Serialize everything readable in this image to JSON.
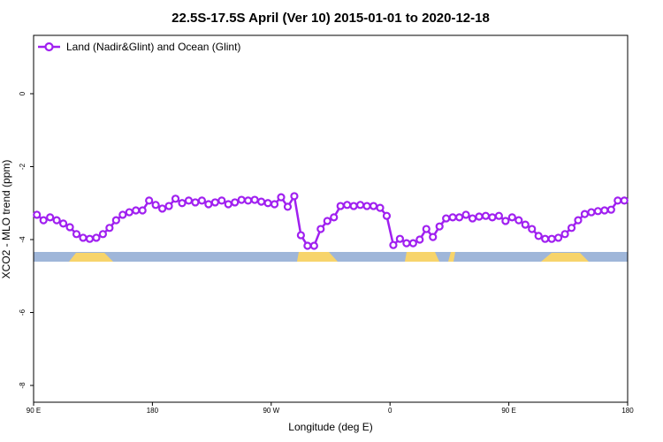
{
  "chart_data": {
    "type": "line",
    "title": "22.5S-17.5S April (Ver 10)   2015-01-01 to 2020-12-18",
    "x_label": "Longitude (deg E)",
    "y_label": "XCO2 - MLO trend (ppm)",
    "x": [
      92.5,
      97.5,
      102.5,
      107.5,
      112.5,
      117.5,
      122.5,
      127.5,
      132.5,
      137.5,
      142.5,
      147.5,
      152.5,
      157.5,
      162.5,
      167.5,
      172.5,
      177.5,
      182.5,
      187.5,
      192.5,
      197.5,
      202.5,
      207.5,
      212.5,
      217.5,
      222.5,
      227.5,
      232.5,
      237.5,
      242.5,
      247.5,
      252.5,
      257.5,
      262.5,
      267.5,
      272.5,
      277.5,
      282.5,
      287.5,
      292.5,
      297.5,
      302.5,
      307.5,
      312.5,
      317.5,
      322.5,
      327.5,
      332.5,
      337.5,
      342.5,
      347.5,
      352.5,
      357.5,
      362.5,
      367.5,
      372.5,
      377.5,
      382.5,
      387.5,
      392.5,
      397.5,
      402.5,
      407.5,
      412.5,
      417.5,
      422.5,
      427.5,
      432.5,
      437.5,
      442.5,
      447.5,
      452.5,
      457.5,
      462.5,
      467.5,
      472.5,
      477.5,
      482.5,
      487.5,
      492.5,
      497.5,
      502.5,
      507.5,
      512.5,
      517.5,
      522.5,
      527.5,
      532.5,
      537.5
    ],
    "series": [
      {
        "name": "Land (Nadir&Glint) and Ocean (Glint)",
        "color": "#a020f0",
        "values": [
          -3.32,
          -3.47,
          -3.39,
          -3.47,
          -3.56,
          -3.66,
          -3.85,
          -3.95,
          -3.98,
          -3.95,
          -3.85,
          -3.68,
          -3.47,
          -3.32,
          -3.25,
          -3.2,
          -3.2,
          -2.93,
          -3.05,
          -3.15,
          -3.08,
          -2.88,
          -3.0,
          -2.93,
          -2.98,
          -2.93,
          -3.03,
          -2.98,
          -2.93,
          -3.03,
          -2.98,
          -2.91,
          -2.93,
          -2.91,
          -2.96,
          -3.0,
          -3.03,
          -2.84,
          -3.1,
          -2.81,
          -3.88,
          -4.17,
          -4.17,
          -3.71,
          -3.49,
          -3.39,
          -3.08,
          -3.05,
          -3.08,
          -3.05,
          -3.08,
          -3.08,
          -3.13,
          -3.35,
          -4.15,
          -3.98,
          -4.1,
          -4.1,
          -4.0,
          -3.71,
          -3.93,
          -3.64,
          -3.42,
          -3.39,
          -3.39,
          -3.32,
          -3.42,
          -3.37,
          -3.35,
          -3.39,
          -3.35,
          -3.49,
          -3.39,
          -3.47,
          -3.59,
          -3.71,
          -3.9,
          -3.98,
          -3.98,
          -3.95,
          -3.85,
          -3.68,
          -3.47,
          -3.3,
          -3.25,
          -3.22,
          -3.2,
          -3.18,
          -2.93,
          -2.93
        ]
      }
    ],
    "xlim": [
      90,
      540
    ],
    "xticks": [
      {
        "value": 90,
        "label": "90 E"
      },
      180,
      {
        "value": 270,
        "label": "90 W"
      },
      {
        "value": 360,
        "label": "0"
      },
      {
        "value": 450,
        "label": "90 E"
      },
      {
        "value": 540,
        "label": "180"
      }
    ],
    "ylim": [
      -8.46,
      1.6
    ],
    "yticks": [
      0,
      -2,
      -4,
      -6,
      -8
    ],
    "legend": "top-left"
  }
}
